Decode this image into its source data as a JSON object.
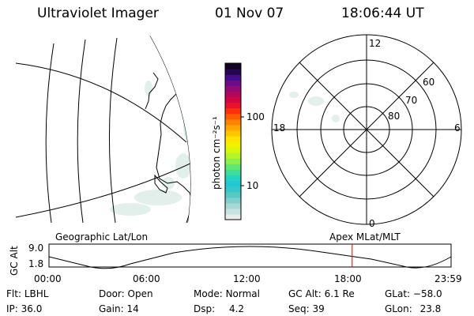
{
  "header": {
    "instrument": "Ultraviolet Imager",
    "date": "01 Nov 07",
    "time": "18:06:44 UT"
  },
  "colorbar": {
    "unit_label": "photon cm⁻²s⁻¹",
    "ticks": [
      {
        "label": "100",
        "value": 100
      },
      {
        "label": "10",
        "value": 10
      }
    ],
    "colors": [
      "#e8eceb",
      "#c9e2e1",
      "#a7d8d6",
      "#7fcfcc",
      "#57c8c3",
      "#36c8c8",
      "#22c7d7",
      "#24d3c0",
      "#3ede9a",
      "#61e670",
      "#8eef48",
      "#b5f427",
      "#d8f70e",
      "#f2f200",
      "#ffe400",
      "#ffc600",
      "#ffa600",
      "#ff8200",
      "#ff5a00",
      "#f8300c",
      "#e8122a",
      "#cf0642",
      "#b4065a",
      "#930a74",
      "#6c0c88",
      "#440c8a",
      "#23084f",
      "#120322"
    ]
  },
  "map": {
    "left_caption": "Geographic Lat/Lon",
    "right_caption": "Apex MLat/MLT"
  },
  "polar": {
    "mlt_labels": {
      "top": "12",
      "left": "18",
      "right": "6",
      "bottom": "0"
    },
    "lat_labels": [
      "60",
      "70",
      "80"
    ]
  },
  "timeline": {
    "y_axis_title": "GC Alt",
    "y_max": "9.0",
    "y_min": "1.8",
    "x_ticks": [
      "00:00",
      "06:00",
      "12:00",
      "18:00",
      "23:59"
    ],
    "current_time_fraction": 0.754
  },
  "status": {
    "filter": {
      "label": "Flt:",
      "value": "LBHL"
    },
    "ip": {
      "label": "IP:",
      "value": "36.0"
    },
    "door": {
      "label": "Door:",
      "value": "Open"
    },
    "gain": {
      "label": "Gain:",
      "value": "14"
    },
    "mode": {
      "label": "Mode:",
      "value": "Normal"
    },
    "dsp": {
      "label": "Dsp:",
      "value": "4.2"
    },
    "gc_alt": {
      "label": "GC Alt:",
      "value": "6.1 Re"
    },
    "seq": {
      "label": "Seq:",
      "value": "39"
    },
    "glat": {
      "label": "GLat:",
      "value": "−58.0"
    },
    "glon": {
      "label": "GLon:",
      "value": "23.8"
    }
  }
}
